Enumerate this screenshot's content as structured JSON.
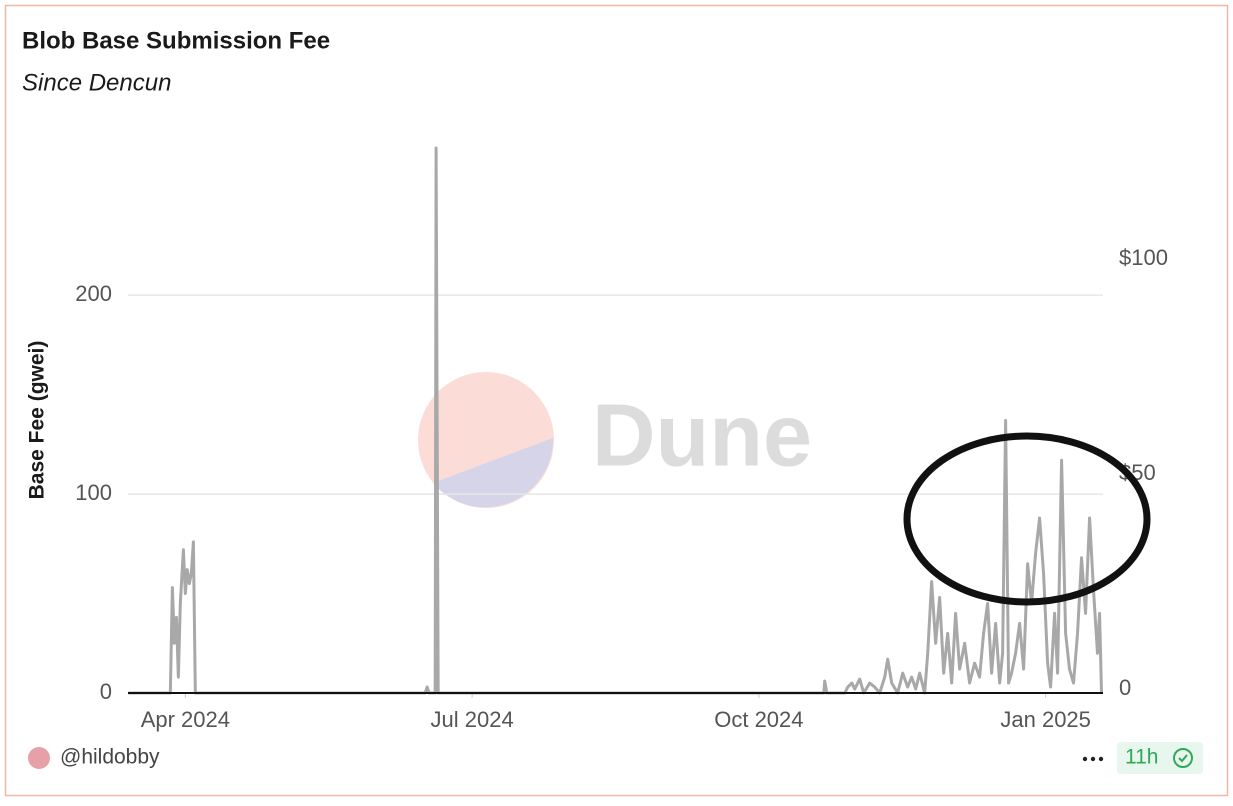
{
  "chart_data": {
    "type": "line",
    "title": "Blob Base Submission Fee",
    "subtitle": "Since Dencun",
    "y_label": "Base Fee (gwei)",
    "watermark": "Dune",
    "author": "@hildobby",
    "age": "11h",
    "x": [
      2024.2004,
      2024.2369,
      2024.2387,
      2024.2404,
      2024.2422,
      2024.2439,
      2024.2456,
      2024.2483,
      2024.25,
      2024.2517,
      2024.2535,
      2024.2552,
      2024.257,
      2024.2587,
      2024.459,
      2024.4608,
      2024.4625,
      2024.4678,
      2024.4686,
      2024.4704,
      2024.8066,
      2024.8074,
      2024.8092,
      2024.8249,
      2024.8275,
      2024.831,
      2024.8336,
      2024.8379,
      2024.8414,
      2024.8466,
      2024.851,
      2024.8553,
      2024.8597,
      2024.8623,
      2024.8658,
      2024.871,
      2024.8754,
      2024.8797,
      2024.8832,
      2024.8867,
      2024.8902,
      2024.8945,
      2024.8972,
      2024.9006,
      2024.9041,
      2024.9076,
      2024.9111,
      2024.9146,
      2024.9181,
      2024.9215,
      2024.925,
      2024.9294,
      2024.9337,
      2024.9381,
      2024.9424,
      2024.9459,
      2024.9494,
      2024.9529,
      2024.9564,
      2024.9599,
      2024.9625,
      2024.9651,
      2024.9677,
      2024.9703,
      2024.9738,
      2024.9773,
      2024.9808,
      2024.9843,
      2024.9877,
      2024.9912,
      2024.9947,
      2024.9982,
      2025.0017,
      2025.0043,
      2025.0078,
      2025.0104,
      2025.0139,
      2025.0174,
      2025.0208,
      2025.0243,
      2025.0278,
      2025.0313,
      2025.0348,
      2025.0383,
      2025.0417,
      2025.0452,
      2025.047,
      2025.0487
    ],
    "values": [
      0,
      0,
      53,
      25,
      38,
      8,
      45,
      72,
      50,
      62,
      55,
      60,
      76,
      0,
      0,
      3,
      0,
      0,
      274,
      0,
      0,
      6,
      0,
      0,
      3,
      5,
      2,
      7,
      0,
      5,
      3,
      0,
      8,
      17,
      5,
      0,
      10,
      3,
      8,
      2,
      10,
      0,
      20,
      56,
      25,
      48,
      10,
      30,
      5,
      40,
      12,
      25,
      5,
      15,
      8,
      30,
      45,
      10,
      35,
      5,
      20,
      137,
      5,
      10,
      20,
      35,
      12,
      65,
      45,
      70,
      88,
      60,
      15,
      3,
      40,
      10,
      117,
      30,
      12,
      5,
      30,
      68,
      40,
      88,
      52,
      20,
      40,
      0
    ],
    "color": "#a8a8a8",
    "xlim": [
      2024.2,
      2025.05
    ],
    "xticks": [
      {
        "value": 2024.25,
        "label": "Apr 2024"
      },
      {
        "value": 2024.5,
        "label": "Jul 2024"
      },
      {
        "value": 2024.75,
        "label": "Oct 2024"
      },
      {
        "value": 2025.0,
        "label": "Jan 2025"
      }
    ],
    "ylim": [
      0,
      278
    ],
    "yticks": [
      0,
      100,
      200
    ],
    "y2lim": [
      0,
      128.6
    ],
    "y2ticks": [
      0,
      {
        "value": 50,
        "label": "$50"
      },
      {
        "value": 100,
        "label": "$100"
      }
    ],
    "grid": true
  }
}
